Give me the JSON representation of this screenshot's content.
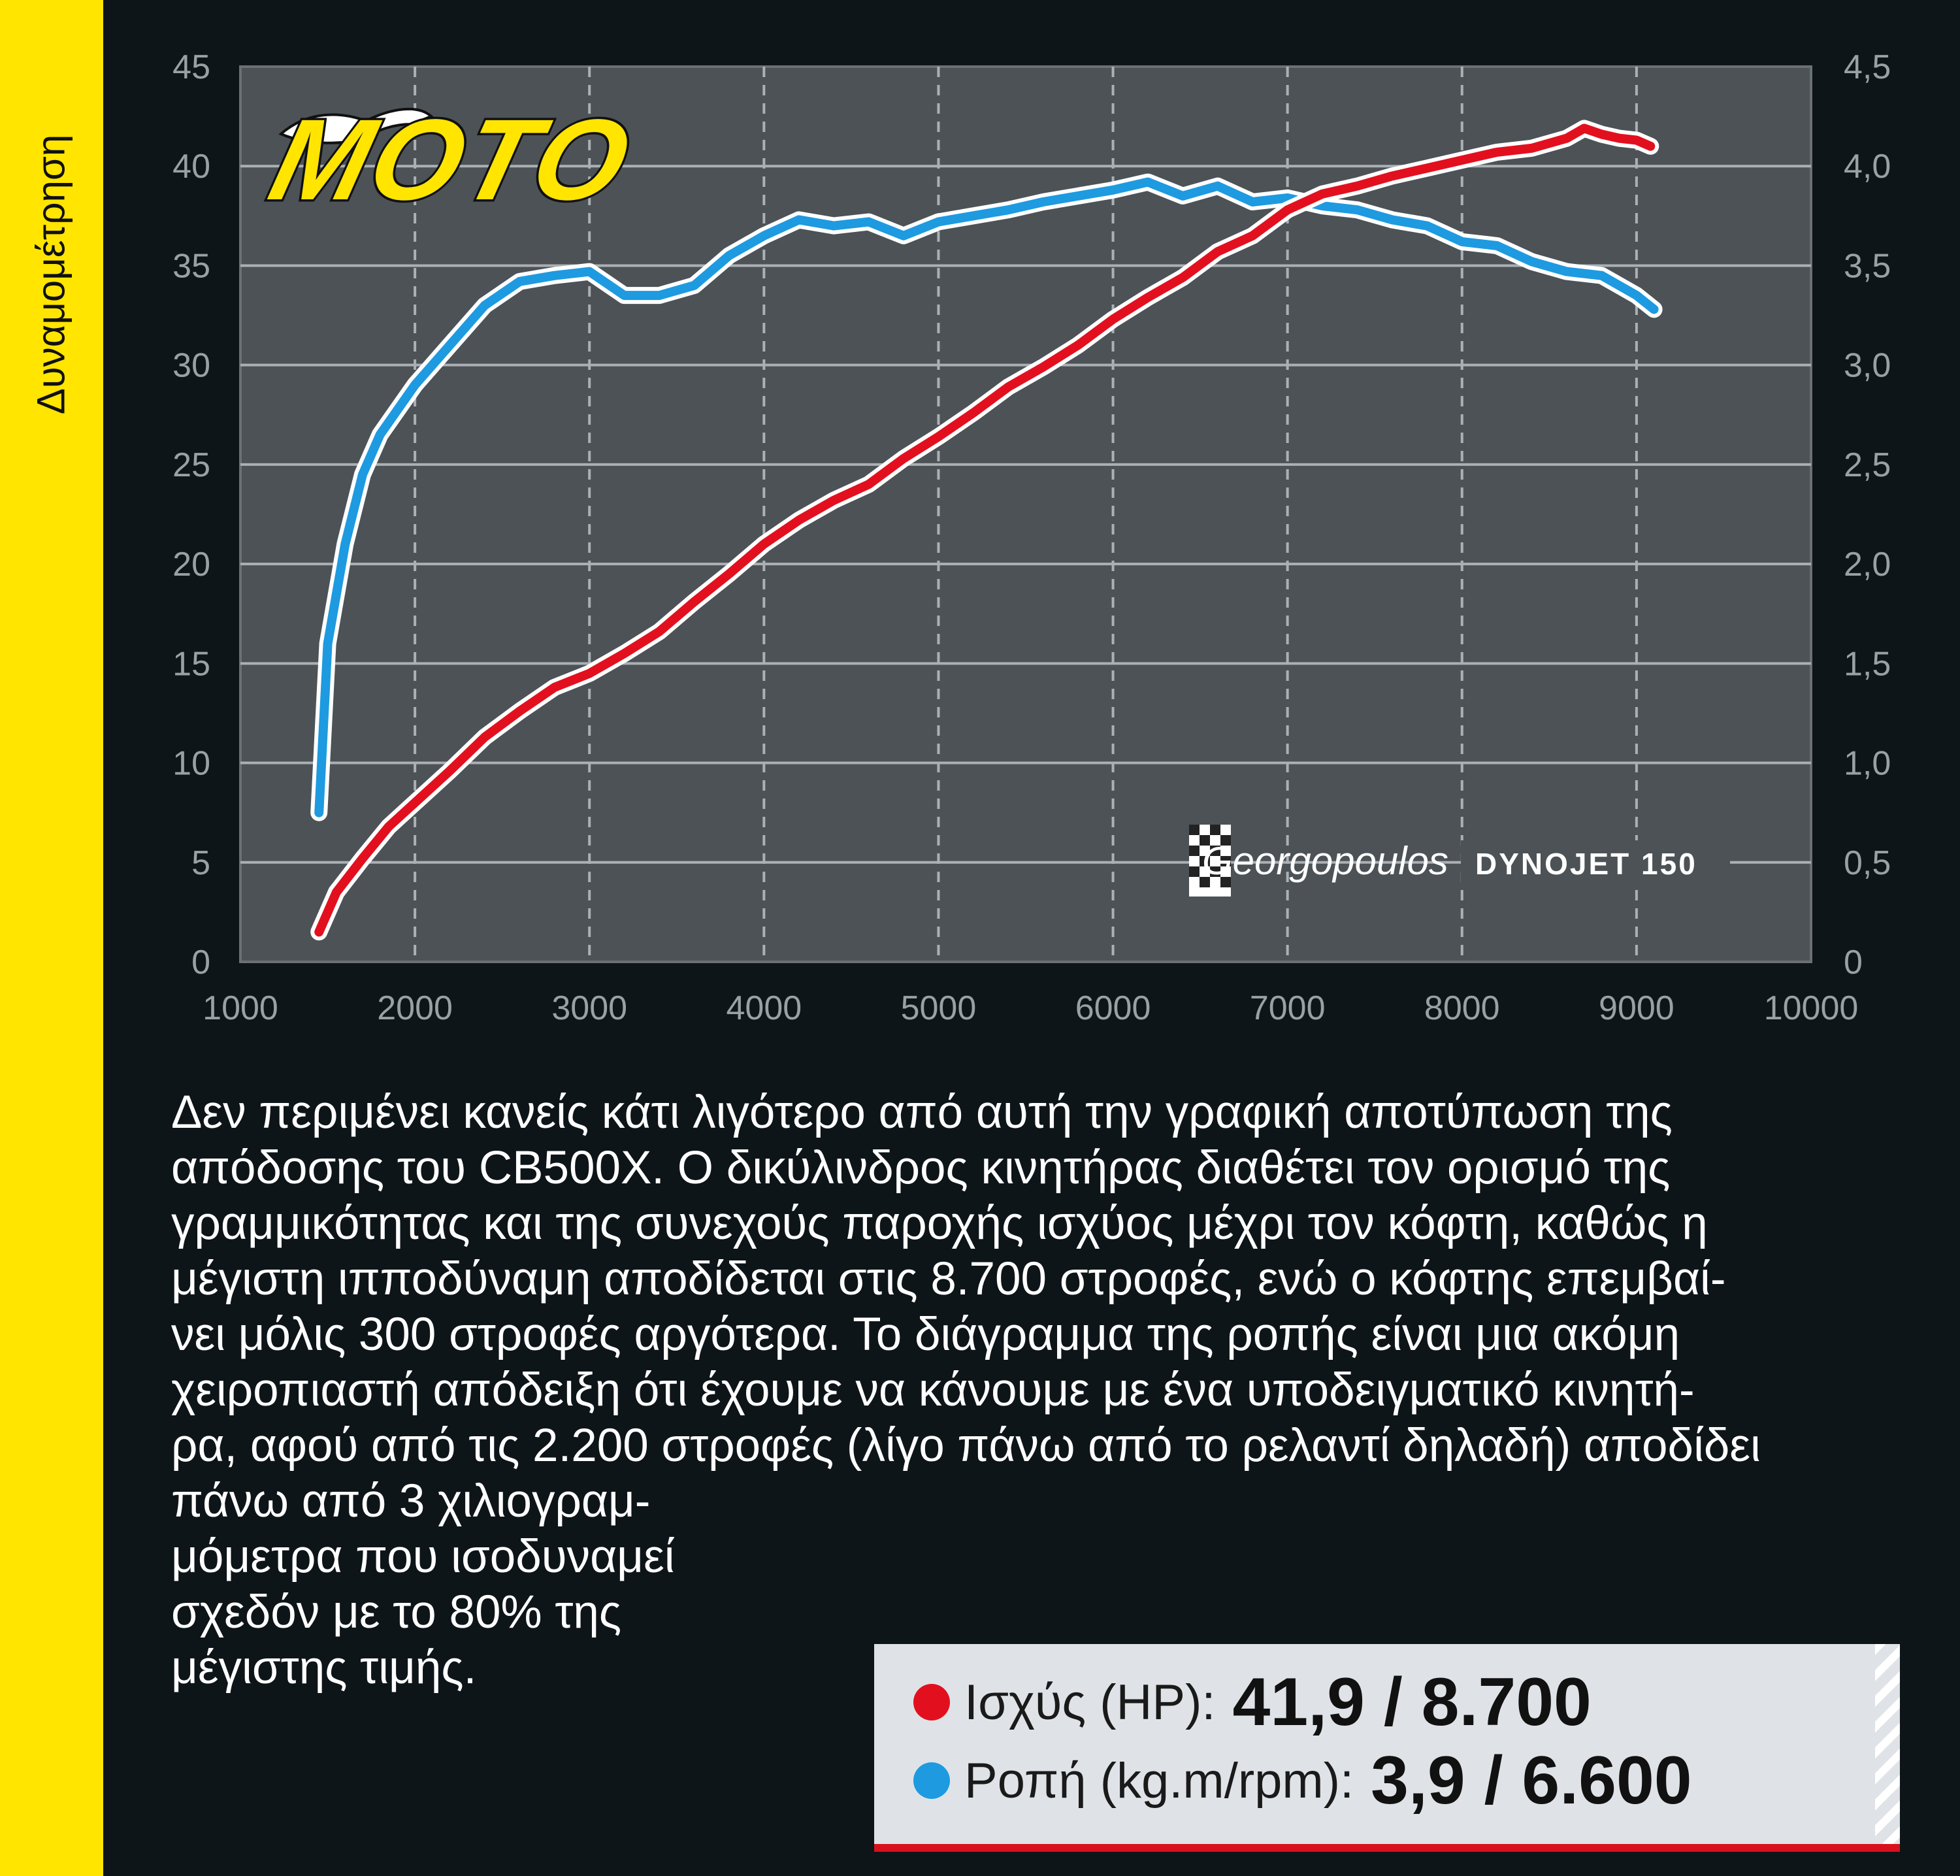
{
  "side_title": "Δυναμομέτρηση",
  "logo_text": "MOTO",
  "watermark": "Georgopoulos",
  "dyno_label": "DYNOJET 150",
  "colors": {
    "power": "#e2101e",
    "torque": "#1e9ae0",
    "plot_bg": "#4c5256",
    "page_bg": "#0e1519",
    "accent_yellow": "#ffe500"
  },
  "chart_data": {
    "type": "line",
    "xlim": [
      1000,
      10000
    ],
    "ylim_left": [
      0,
      45
    ],
    "ylim_right": [
      0,
      4.5
    ],
    "x_ticks": [
      "1000",
      "2000",
      "3000",
      "4000",
      "5000",
      "6000",
      "7000",
      "8000",
      "9000",
      "10000"
    ],
    "y_left_ticks": [
      "0",
      "5",
      "10",
      "15",
      "20",
      "25",
      "30",
      "35",
      "40",
      "45"
    ],
    "y_right_ticks": [
      "0",
      "0,5",
      "1,0",
      "1,5",
      "2,0",
      "2,5",
      "3,0",
      "3,5",
      "4,0",
      "4,5"
    ],
    "grid": true,
    "series": [
      {
        "name": "Ισχύς (HP)",
        "axis": "left",
        "x": [
          1450,
          1550,
          1700,
          1850,
          2000,
          2200,
          2400,
          2600,
          2800,
          3000,
          3200,
          3400,
          3600,
          3800,
          4000,
          4200,
          4400,
          4600,
          4800,
          5000,
          5200,
          5400,
          5600,
          5800,
          6000,
          6200,
          6400,
          6600,
          6800,
          7000,
          7200,
          7400,
          7600,
          7800,
          8000,
          8200,
          8400,
          8600,
          8700,
          8800,
          8900,
          9000,
          9080
        ],
        "y": [
          1.5,
          3.5,
          5.2,
          6.8,
          8.0,
          9.6,
          11.3,
          12.6,
          13.8,
          14.5,
          15.5,
          16.6,
          18.1,
          19.5,
          21.0,
          22.2,
          23.2,
          24.0,
          25.3,
          26.4,
          27.6,
          28.9,
          29.9,
          31.0,
          32.3,
          33.4,
          34.4,
          35.7,
          36.5,
          37.8,
          38.6,
          39.0,
          39.5,
          39.9,
          40.3,
          40.7,
          40.9,
          41.4,
          41.9,
          41.6,
          41.4,
          41.3,
          41.0
        ]
      },
      {
        "name": "Ροπή (kg.m/rpm)",
        "axis": "right",
        "x": [
          1450,
          1500,
          1600,
          1700,
          1800,
          2000,
          2200,
          2400,
          2600,
          2800,
          3000,
          3200,
          3400,
          3600,
          3800,
          4000,
          4200,
          4400,
          4600,
          4800,
          5000,
          5200,
          5400,
          5600,
          5800,
          6000,
          6200,
          6400,
          6600,
          6800,
          7000,
          7200,
          7400,
          7600,
          7800,
          8000,
          8200,
          8400,
          8600,
          8800,
          9000,
          9100
        ],
        "y": [
          0.75,
          1.6,
          2.1,
          2.45,
          2.65,
          2.9,
          3.1,
          3.3,
          3.42,
          3.45,
          3.47,
          3.35,
          3.35,
          3.4,
          3.55,
          3.65,
          3.73,
          3.7,
          3.72,
          3.65,
          3.72,
          3.75,
          3.78,
          3.82,
          3.85,
          3.88,
          3.92,
          3.85,
          3.9,
          3.82,
          3.84,
          3.8,
          3.78,
          3.73,
          3.7,
          3.62,
          3.6,
          3.52,
          3.47,
          3.45,
          3.35,
          3.28
        ]
      }
    ]
  },
  "description_lines": [
    "Δεν περιμένει κανείς κάτι λιγότερο από αυτή την γραφική αποτύπωση της",
    "απόδοσης του CB500X. Ο δικύλινδρος κινητήρας διαθέτει τον ορισμό της",
    "γραμμικότητας και της συνεχούς παροχής ισχύος μέχρι τον κόφτη, καθώς η",
    "μέγιστη ιπποδύναμη αποδίδεται στις 8.700 στροφές, ενώ ο κόφτης επεμβαί-",
    "νει μόλις 300 στροφές αργότερα. Το διάγραμμα της ροπής είναι μια ακόμη",
    "χειροπιαστή απόδειξη ότι έχουμε να κάνουμε με ένα υποδειγματικό κινητή-",
    "ρα, αφού από τις 2.200 στροφές (λίγο πάνω από το ρελαντί δηλαδή) αποδίδει",
    "πάνω από 3 χιλιογραμ-",
    "μόμετρα που ισοδυναμεί",
    "σχεδόν με το 80% της",
    "μέγιστης τιμής."
  ],
  "stats": {
    "power_label": "Ισχύς (HP):",
    "power_value": "41,9 / 8.700",
    "torque_label": "Ροπή (kg.m/rpm):",
    "torque_value": "3,9 / 6.600"
  }
}
